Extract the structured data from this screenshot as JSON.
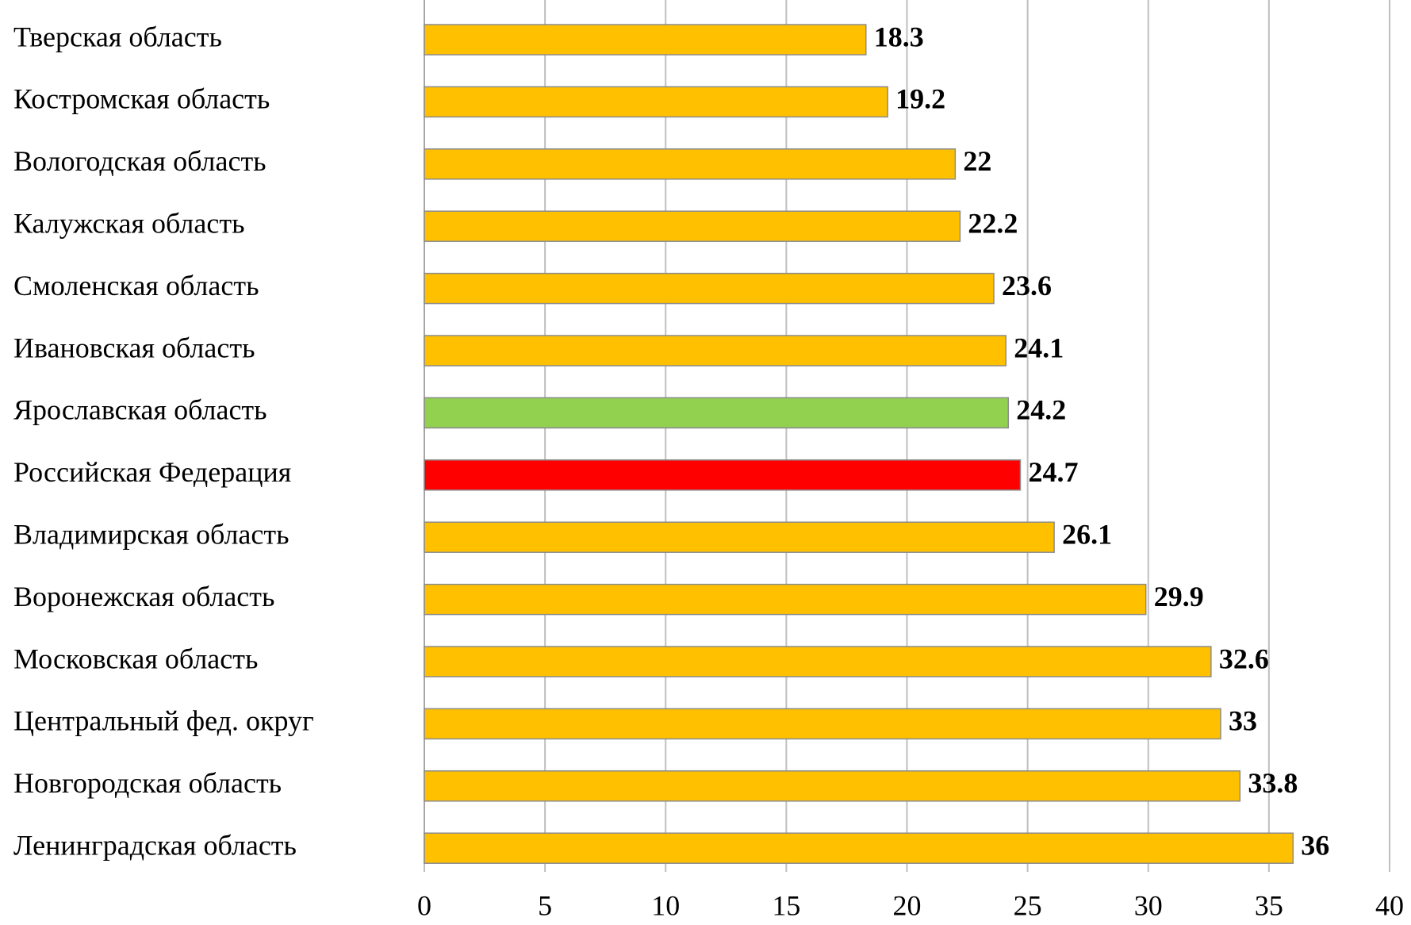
{
  "chart_data": {
    "type": "barh",
    "categories": [
      "Тверская область",
      "Костромская область",
      "Вологодская область",
      "Калужская область",
      "Смоленская область",
      "Ивановская область",
      "Ярославская область",
      "Российская Федерация",
      "Владимирская область",
      "Воронежская область",
      "Московская область",
      "Центральный фед. округ",
      "Новгородская область",
      "Ленинградская область"
    ],
    "values": [
      18.3,
      19.2,
      22,
      22.2,
      23.6,
      24.1,
      24.2,
      24.7,
      26.1,
      29.9,
      32.6,
      33,
      33.8,
      36
    ],
    "colors": [
      "#ffc000",
      "#ffc000",
      "#ffc000",
      "#ffc000",
      "#ffc000",
      "#ffc000",
      "#92d050",
      "#ff0000",
      "#ffc000",
      "#ffc000",
      "#ffc000",
      "#ffc000",
      "#ffc000",
      "#ffc000"
    ],
    "xlim": [
      0,
      40
    ],
    "xticks": [
      0,
      5,
      10,
      15,
      20,
      25,
      30,
      35,
      40
    ],
    "grid": true
  }
}
